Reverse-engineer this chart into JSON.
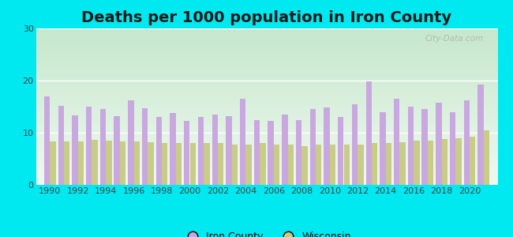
{
  "title": "Deaths per 1000 population in Iron County",
  "years": [
    1990,
    1991,
    1992,
    1993,
    1994,
    1995,
    1996,
    1997,
    1998,
    1999,
    2000,
    2001,
    2002,
    2003,
    2004,
    2005,
    2006,
    2007,
    2008,
    2009,
    2010,
    2011,
    2012,
    2013,
    2014,
    2015,
    2016,
    2017,
    2018,
    2019,
    2020,
    2021
  ],
  "iron_county": [
    17.0,
    15.2,
    13.3,
    15.0,
    14.5,
    13.2,
    16.2,
    14.7,
    13.0,
    13.8,
    12.2,
    13.0,
    13.5,
    13.2,
    16.5,
    12.5,
    12.3,
    13.5,
    12.5,
    14.5,
    14.8,
    13.0,
    15.5,
    19.8,
    14.0,
    16.5,
    15.0,
    14.5,
    15.8,
    14.0,
    16.2,
    19.2
  ],
  "wisconsin": [
    8.3,
    8.3,
    8.3,
    8.7,
    8.5,
    8.3,
    8.3,
    8.2,
    8.0,
    8.0,
    8.0,
    8.0,
    8.0,
    7.8,
    7.8,
    8.0,
    7.8,
    7.7,
    7.5,
    7.8,
    7.7,
    7.8,
    7.8,
    8.0,
    8.0,
    8.2,
    8.5,
    8.5,
    8.8,
    9.0,
    9.2,
    10.5
  ],
  "iron_county_color": "#c9a8e0",
  "wisconsin_color": "#c8cc88",
  "ylim": [
    0,
    30
  ],
  "yticks": [
    0,
    10,
    20,
    30
  ],
  "bg_outer": "#00e8f0",
  "bg_top_color": "#c5e8cc",
  "bg_bottom_color": "#f0f8f0",
  "title_fontsize": 14,
  "watermark": "City-Data.com",
  "bar_width": 0.42,
  "grid_color": "#ffffff",
  "label_fontsize": 9,
  "tick_fontsize": 8
}
